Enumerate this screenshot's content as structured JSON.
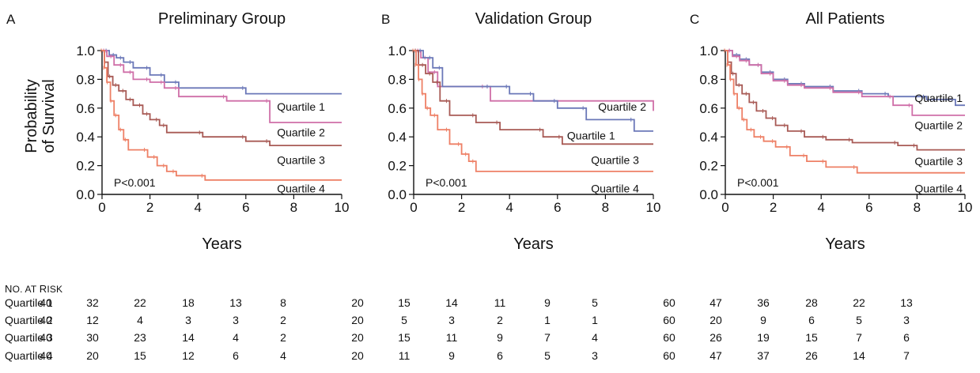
{
  "chart_data": [
    {
      "type": "line",
      "panel_letter": "A",
      "title": "Preliminary Group",
      "xlabel": "Years",
      "ylabel": "Probability of Survival",
      "ylabel_lines": [
        "Probability",
        "of Survival"
      ],
      "xlim": [
        0,
        10
      ],
      "ylim": [
        0,
        1.0
      ],
      "xticks": [
        "0",
        "2",
        "4",
        "6",
        "8",
        "10"
      ],
      "yticks": [
        "0.0",
        "0.2",
        "0.4",
        "0.6",
        "0.8",
        "1.0"
      ],
      "grid": false,
      "step": true,
      "p_value": "P<0.001",
      "series": [
        {
          "name": "Quartile 1",
          "label_pos": [
            7.3,
            0.61
          ],
          "color": "#6b78b8",
          "x": [
            0,
            0.3,
            0.6,
            0.9,
            1.3,
            2.0,
            2.6,
            3.2,
            6.0,
            10
          ],
          "y": [
            1.0,
            0.97,
            0.95,
            0.92,
            0.88,
            0.83,
            0.78,
            0.74,
            0.7,
            0.7
          ]
        },
        {
          "name": "Quartile 2",
          "label_pos": [
            7.3,
            0.43
          ],
          "color": "#cf6fa8",
          "x": [
            0,
            0.2,
            0.5,
            0.9,
            1.3,
            2.0,
            2.6,
            3.2,
            5.2,
            7.0,
            10
          ],
          "y": [
            1.0,
            0.96,
            0.9,
            0.85,
            0.8,
            0.78,
            0.74,
            0.68,
            0.65,
            0.5,
            0.5
          ]
        },
        {
          "name": "Quartile 3",
          "label_pos": [
            7.3,
            0.24
          ],
          "color": "#a85a55",
          "x": [
            0,
            0.1,
            0.25,
            0.45,
            0.7,
            1.0,
            1.3,
            1.7,
            2.0,
            2.4,
            2.7,
            4.2,
            6.0,
            7.0,
            10
          ],
          "y": [
            1.0,
            0.92,
            0.82,
            0.76,
            0.72,
            0.66,
            0.62,
            0.56,
            0.52,
            0.48,
            0.43,
            0.4,
            0.37,
            0.34,
            0.34
          ]
        },
        {
          "name": "Quartile 4",
          "label_pos": [
            7.3,
            0.04
          ],
          "color": "#ee8066",
          "x": [
            0,
            0.1,
            0.2,
            0.35,
            0.5,
            0.7,
            0.9,
            1.1,
            1.9,
            2.3,
            2.7,
            3.1,
            4.3,
            10
          ],
          "y": [
            1.0,
            0.88,
            0.78,
            0.65,
            0.55,
            0.45,
            0.38,
            0.31,
            0.26,
            0.2,
            0.16,
            0.13,
            0.1,
            0.1
          ]
        }
      ]
    },
    {
      "type": "line",
      "panel_letter": "B",
      "title": "Validation Group",
      "xlabel": "Years",
      "ylabel": "",
      "xlim": [
        0,
        10
      ],
      "ylim": [
        0,
        1.0
      ],
      "xticks": [
        "0",
        "2",
        "4",
        "6",
        "8",
        "10"
      ],
      "yticks": [
        "0.0",
        "0.2",
        "0.4",
        "0.6",
        "0.8",
        "1.0"
      ],
      "grid": false,
      "step": true,
      "p_value": "P<0.001",
      "series": [
        {
          "name": "Quartile 2",
          "label_pos": [
            7.7,
            0.61
          ],
          "color": "#cf6fa8",
          "x": [
            0,
            0.3,
            0.6,
            1.0,
            3.0,
            3.2,
            10
          ],
          "y": [
            1.0,
            0.95,
            0.85,
            0.75,
            0.75,
            0.65,
            0.58
          ]
        },
        {
          "name": "Quartile 1",
          "label_pos": [
            6.4,
            0.41
          ],
          "color": "#6b78b8",
          "x": [
            0,
            0.4,
            0.8,
            1.2,
            3.2,
            4.0,
            5.0,
            6.0,
            7.2,
            9.2,
            10
          ],
          "y": [
            1.0,
            0.95,
            0.88,
            0.75,
            0.75,
            0.7,
            0.65,
            0.6,
            0.52,
            0.44,
            0.44
          ]
        },
        {
          "name": "Quartile 3",
          "label_pos": [
            7.4,
            0.24
          ],
          "color": "#a85a55",
          "x": [
            0,
            0.2,
            0.5,
            0.8,
            1.1,
            1.5,
            2.6,
            3.6,
            5.4,
            6.2,
            10
          ],
          "y": [
            1.0,
            0.9,
            0.84,
            0.78,
            0.65,
            0.55,
            0.5,
            0.45,
            0.4,
            0.35,
            0.35
          ]
        },
        {
          "name": "Quartile 4",
          "label_pos": [
            7.4,
            0.04
          ],
          "color": "#ee8066",
          "x": [
            0,
            0.1,
            0.2,
            0.35,
            0.5,
            0.7,
            1.0,
            1.5,
            2.0,
            2.3,
            2.6,
            10
          ],
          "y": [
            1.0,
            0.9,
            0.8,
            0.7,
            0.6,
            0.55,
            0.45,
            0.35,
            0.28,
            0.23,
            0.16,
            0.16
          ]
        }
      ]
    },
    {
      "type": "line",
      "panel_letter": "C",
      "title": "All Patients",
      "xlabel": "Years",
      "ylabel": "",
      "xlim": [
        0,
        10
      ],
      "ylim": [
        0,
        1.0
      ],
      "xticks": [
        "0",
        "2",
        "4",
        "6",
        "8",
        "10"
      ],
      "yticks": [
        "0.0",
        "0.2",
        "0.4",
        "0.6",
        "0.8",
        "1.0"
      ],
      "grid": false,
      "step": true,
      "p_value": "P<0.001",
      "series": [
        {
          "name": "Quartile 1",
          "label_pos": [
            7.9,
            0.67
          ],
          "color": "#6b78b8",
          "x": [
            0,
            0.3,
            0.6,
            1.0,
            1.5,
            2.0,
            2.6,
            3.3,
            4.5,
            5.7,
            6.8,
            8.4,
            9.6,
            10
          ],
          "y": [
            1.0,
            0.97,
            0.94,
            0.9,
            0.85,
            0.8,
            0.77,
            0.75,
            0.72,
            0.7,
            0.68,
            0.66,
            0.62,
            0.62
          ]
        },
        {
          "name": "Quartile 2",
          "label_pos": [
            7.9,
            0.48
          ],
          "color": "#cf6fa8",
          "x": [
            0,
            0.3,
            0.6,
            1.0,
            1.5,
            2.0,
            2.6,
            3.3,
            4.5,
            5.7,
            7.0,
            7.8,
            10
          ],
          "y": [
            1.0,
            0.96,
            0.93,
            0.9,
            0.84,
            0.79,
            0.76,
            0.74,
            0.71,
            0.68,
            0.62,
            0.55,
            0.55
          ]
        },
        {
          "name": "Quartile 3",
          "label_pos": [
            7.9,
            0.23
          ],
          "color": "#a85a55",
          "x": [
            0,
            0.1,
            0.25,
            0.45,
            0.7,
            1.0,
            1.3,
            1.7,
            2.1,
            2.6,
            3.3,
            4.2,
            5.3,
            7.2,
            8.0,
            10
          ],
          "y": [
            1.0,
            0.92,
            0.84,
            0.76,
            0.7,
            0.64,
            0.58,
            0.53,
            0.48,
            0.44,
            0.4,
            0.38,
            0.36,
            0.34,
            0.31,
            0.31
          ]
        },
        {
          "name": "Quartile 4",
          "label_pos": [
            7.9,
            0.04
          ],
          "color": "#ee8066",
          "x": [
            0,
            0.1,
            0.2,
            0.35,
            0.5,
            0.7,
            0.9,
            1.2,
            1.6,
            2.1,
            2.7,
            3.4,
            4.2,
            5.5,
            10
          ],
          "y": [
            1.0,
            0.9,
            0.8,
            0.7,
            0.6,
            0.52,
            0.45,
            0.4,
            0.37,
            0.33,
            0.27,
            0.23,
            0.19,
            0.15,
            0.15
          ]
        }
      ]
    }
  ],
  "at_risk": {
    "header": "No. at Risk",
    "header_parts": [
      "N",
      "O",
      ". AT ",
      "R",
      "ISK"
    ],
    "rows": [
      {
        "label": "Quartile 1",
        "groups": [
          [
            40,
            32,
            22,
            18,
            13,
            8
          ],
          [
            20,
            15,
            14,
            11,
            9,
            5
          ],
          [
            60,
            47,
            36,
            28,
            22,
            13
          ]
        ]
      },
      {
        "label": "Quartile 2",
        "groups": [
          [
            40,
            12,
            4,
            3,
            3,
            2
          ],
          [
            20,
            5,
            3,
            2,
            1,
            1
          ],
          [
            60,
            20,
            9,
            6,
            5,
            3
          ]
        ]
      },
      {
        "label": "Quartile 3",
        "groups": [
          [
            40,
            30,
            23,
            14,
            4,
            2
          ],
          [
            20,
            15,
            11,
            9,
            7,
            4
          ],
          [
            60,
            26,
            19,
            15,
            7,
            6
          ]
        ]
      },
      {
        "label": "Quartile 4",
        "groups": [
          [
            40,
            20,
            15,
            12,
            6,
            4
          ],
          [
            20,
            11,
            9,
            6,
            5,
            3
          ],
          [
            60,
            47,
            37,
            26,
            14,
            7
          ]
        ]
      }
    ]
  }
}
